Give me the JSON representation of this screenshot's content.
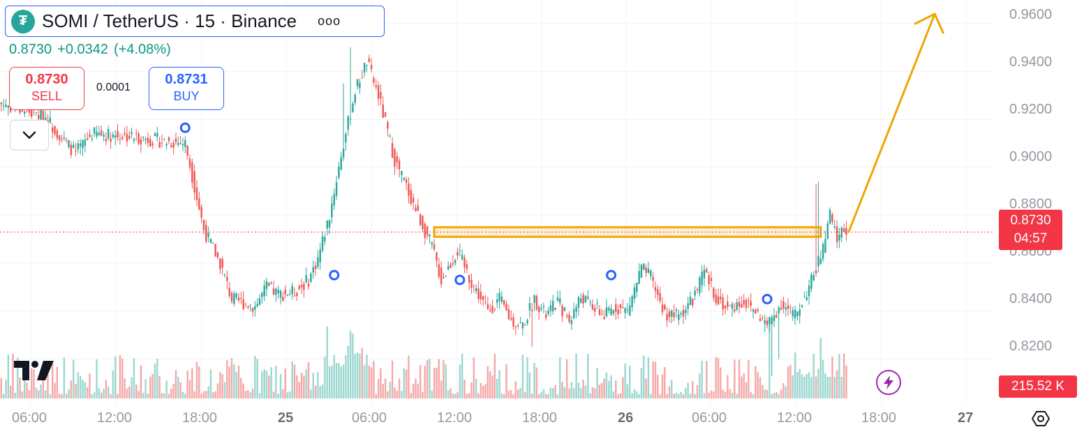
{
  "header": {
    "logo_glyph": "₮",
    "symbol_title": "SOMI / TetherUS · 15 · Binance",
    "more_label": "ooo"
  },
  "quote": {
    "last": "0.8730",
    "change": "+0.0342",
    "change_pct": "(+4.08%)"
  },
  "trade": {
    "sell_price": "0.8730",
    "sell_label": "SELL",
    "spread": "0.0001",
    "buy_price": "0.8731",
    "buy_label": "BUY"
  },
  "price_axis": {
    "labels": [
      "0.9600",
      "0.9400",
      "0.9200",
      "0.9000",
      "0.8800",
      "0.8600",
      "0.8400",
      "0.8200"
    ],
    "current_price": "0.8730",
    "countdown": "04:57",
    "volume_label": "215.52 K"
  },
  "time_axis": {
    "labels": [
      "06:00",
      "12:00",
      "18:00",
      "25",
      "06:00",
      "12:00",
      "18:00",
      "26",
      "06:00",
      "12:00",
      "18:00",
      "27"
    ]
  },
  "colors": {
    "up": "#26a69a",
    "down": "#ef5350",
    "zone": "#f0a500",
    "marker": "#2962ff",
    "price_tag": "#f23645"
  },
  "chart_data": {
    "type": "candlestick",
    "ylim": [
      0.805,
      0.964
    ],
    "timeframe_minutes": 15,
    "start_time": "24 03:30",
    "anchors": [
      [
        0,
        0.927
      ],
      [
        20,
        0.921
      ],
      [
        28,
        0.911
      ],
      [
        33,
        0.906
      ],
      [
        40,
        0.914
      ],
      [
        55,
        0.913
      ],
      [
        70,
        0.911
      ],
      [
        80,
        0.91
      ],
      [
        88,
        0.874
      ],
      [
        95,
        0.86
      ],
      [
        100,
        0.845
      ],
      [
        110,
        0.842
      ],
      [
        115,
        0.85
      ],
      [
        120,
        0.847
      ],
      [
        127,
        0.848
      ],
      [
        133,
        0.853
      ],
      [
        137,
        0.862
      ],
      [
        142,
        0.88
      ],
      [
        147,
        0.905
      ],
      [
        153,
        0.932
      ],
      [
        158,
        0.944
      ],
      [
        163,
        0.93
      ],
      [
        170,
        0.903
      ],
      [
        175,
        0.892
      ],
      [
        180,
        0.88
      ],
      [
        186,
        0.867
      ],
      [
        190,
        0.853
      ],
      [
        197,
        0.865
      ],
      [
        203,
        0.852
      ],
      [
        210,
        0.84
      ],
      [
        215,
        0.845
      ],
      [
        220,
        0.836
      ],
      [
        225,
        0.834
      ],
      [
        230,
        0.845
      ],
      [
        235,
        0.838
      ],
      [
        240,
        0.844
      ],
      [
        245,
        0.836
      ],
      [
        250,
        0.846
      ],
      [
        255,
        0.842
      ],
      [
        260,
        0.838
      ],
      [
        265,
        0.842
      ],
      [
        270,
        0.84
      ],
      [
        276,
        0.858
      ],
      [
        280,
        0.854
      ],
      [
        286,
        0.839
      ],
      [
        292,
        0.838
      ],
      [
        298,
        0.845
      ],
      [
        303,
        0.856
      ],
      [
        308,
        0.846
      ],
      [
        313,
        0.841
      ],
      [
        320,
        0.844
      ],
      [
        325,
        0.84
      ],
      [
        330,
        0.834
      ],
      [
        336,
        0.843
      ],
      [
        342,
        0.838
      ],
      [
        348,
        0.85
      ],
      [
        354,
        0.866
      ],
      [
        357,
        0.88
      ],
      [
        360,
        0.87
      ],
      [
        363,
        0.875
      ],
      [
        364,
        0.873
      ]
    ],
    "zone": {
      "start_index": 187,
      "end_index": 353,
      "low": 0.871,
      "high": 0.875
    },
    "markers": [
      [
        80,
        0.9165
      ],
      [
        144,
        0.855
      ],
      [
        198,
        0.853
      ],
      [
        263,
        0.855
      ],
      [
        330,
        0.845
      ]
    ],
    "arrow": [
      [
        365,
        0.873
      ],
      [
        402,
        0.964
      ]
    ]
  }
}
